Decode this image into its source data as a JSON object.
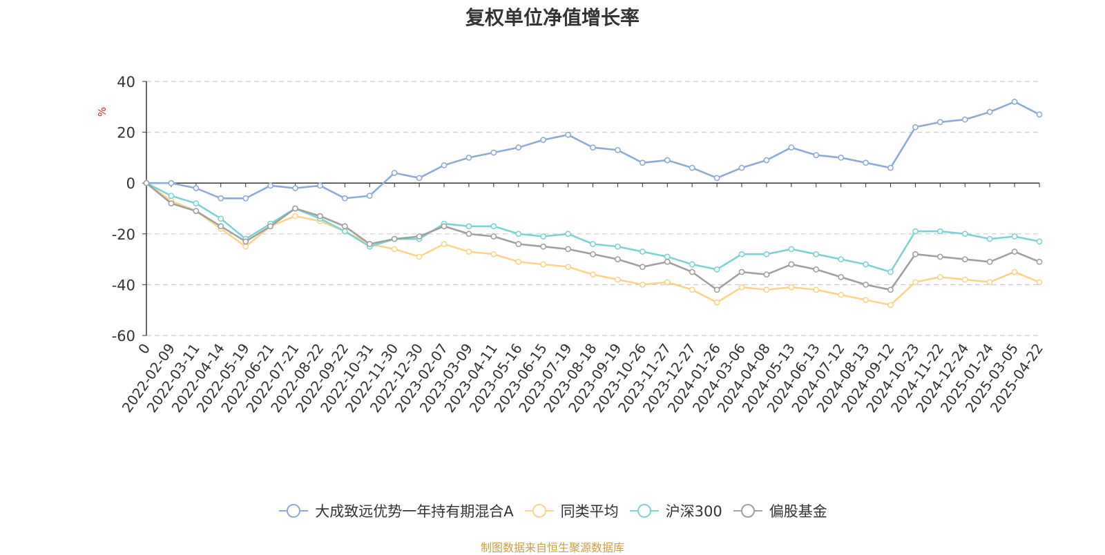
{
  "chart_data": {
    "type": "line",
    "title": "复权单位净值增长率",
    "ylabel": "%",
    "xlabel": "",
    "ylim": [
      -60,
      40
    ],
    "yticks": [
      40,
      20,
      0,
      -20,
      -40,
      -60
    ],
    "grid": true,
    "legend_position": "bottom",
    "x": [
      "0",
      "2022-02-09",
      "2022-03-11",
      "2022-04-14",
      "2022-05-19",
      "2022-06-21",
      "2022-07-21",
      "2022-08-22",
      "2022-09-22",
      "2022-10-31",
      "2022-11-30",
      "2022-12-30",
      "2023-02-07",
      "2023-03-09",
      "2023-04-11",
      "2023-05-16",
      "2023-06-15",
      "2023-07-19",
      "2023-08-18",
      "2023-09-19",
      "2023-10-26",
      "2023-11-27",
      "2023-12-27",
      "2024-01-26",
      "2024-03-06",
      "2024-04-08",
      "2024-05-13",
      "2024-06-13",
      "2024-07-12",
      "2024-08-13",
      "2024-09-12",
      "2024-10-23",
      "2024-11-22",
      "2024-12-24",
      "2025-01-24",
      "2025-03-05",
      "2025-04-22"
    ],
    "series": [
      {
        "name": "大成致远优势一年持有期混合A",
        "color": "#8eaad8",
        "values": [
          0,
          0,
          -2,
          -6,
          -6,
          -1,
          -2,
          -1,
          -6,
          -5,
          4,
          2,
          7,
          10,
          12,
          14,
          17,
          19,
          14,
          13,
          8,
          9,
          6,
          2,
          6,
          9,
          14,
          11,
          10,
          8,
          6,
          22,
          24,
          25,
          28,
          32,
          27
        ]
      },
      {
        "name": "同类平均",
        "color": "#fbd48a",
        "values": [
          0,
          -7,
          -11,
          -18,
          -25,
          -17,
          -13,
          -15,
          -19,
          -24,
          -26,
          -29,
          -24,
          -27,
          -28,
          -31,
          -32,
          -33,
          -36,
          -38,
          -40,
          -39,
          -42,
          -47,
          -41,
          -42,
          -41,
          -42,
          -44,
          -46,
          -48,
          -39,
          -37,
          -38,
          -39,
          -35,
          -39
        ]
      },
      {
        "name": "沪深300",
        "color": "#7dd3d4",
        "values": [
          0,
          -5,
          -8,
          -14,
          -22,
          -16,
          -10,
          -14,
          -19,
          -25,
          -22,
          -22,
          -16,
          -17,
          -17,
          -20,
          -21,
          -20,
          -24,
          -25,
          -27,
          -29,
          -32,
          -34,
          -28,
          -28,
          -26,
          -28,
          -30,
          -32,
          -35,
          -19,
          -19,
          -20,
          -22,
          -21,
          -23
        ]
      },
      {
        "name": "偏股基金",
        "color": "#a0a0a0",
        "values": [
          0,
          -8,
          -11,
          -17,
          -23,
          -17,
          -10,
          -13,
          -17,
          -24,
          -22,
          -21,
          -17,
          -20,
          -21,
          -24,
          -25,
          -26,
          -28,
          -30,
          -33,
          -31,
          -35,
          -42,
          -35,
          -36,
          -32,
          -34,
          -37,
          -40,
          -42,
          -28,
          -29,
          -30,
          -31,
          -27,
          -31
        ]
      }
    ]
  },
  "source_note": "制图数据来自恒生聚源数据库"
}
